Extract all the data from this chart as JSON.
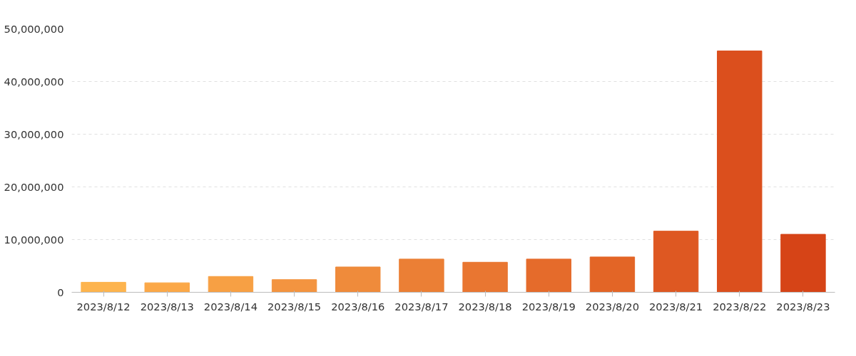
{
  "chart_data": {
    "type": "bar",
    "categories": [
      "2023/8/12",
      "2023/8/13",
      "2023/8/14",
      "2023/8/15",
      "2023/8/16",
      "2023/8/17",
      "2023/8/18",
      "2023/8/19",
      "2023/8/20",
      "2023/8/21",
      "2023/8/22",
      "2023/8/23"
    ],
    "values": [
      1900000,
      1800000,
      3000000,
      2400000,
      4800000,
      6300000,
      5700000,
      6300000,
      6700000,
      11600000,
      45800000,
      11000000
    ],
    "colors": [
      "#fdb44e",
      "#fba848",
      "#f7a044",
      "#f39440",
      "#ef8b3b",
      "#eb7f35",
      "#e97631",
      "#e56b2b",
      "#e36526",
      "#de5822",
      "#db4f1d",
      "#d64417"
    ],
    "ylim": [
      0,
      50000000
    ],
    "yticks": [
      {
        "value": 0,
        "label": "0"
      },
      {
        "value": 10000000,
        "label": "10,000,000"
      },
      {
        "value": 20000000,
        "label": "20,000,000"
      },
      {
        "value": 30000000,
        "label": "30,000,000"
      },
      {
        "value": 40000000,
        "label": "40,000,000"
      },
      {
        "value": 50000000,
        "label": "50,000,000"
      }
    ],
    "grid": "y"
  }
}
